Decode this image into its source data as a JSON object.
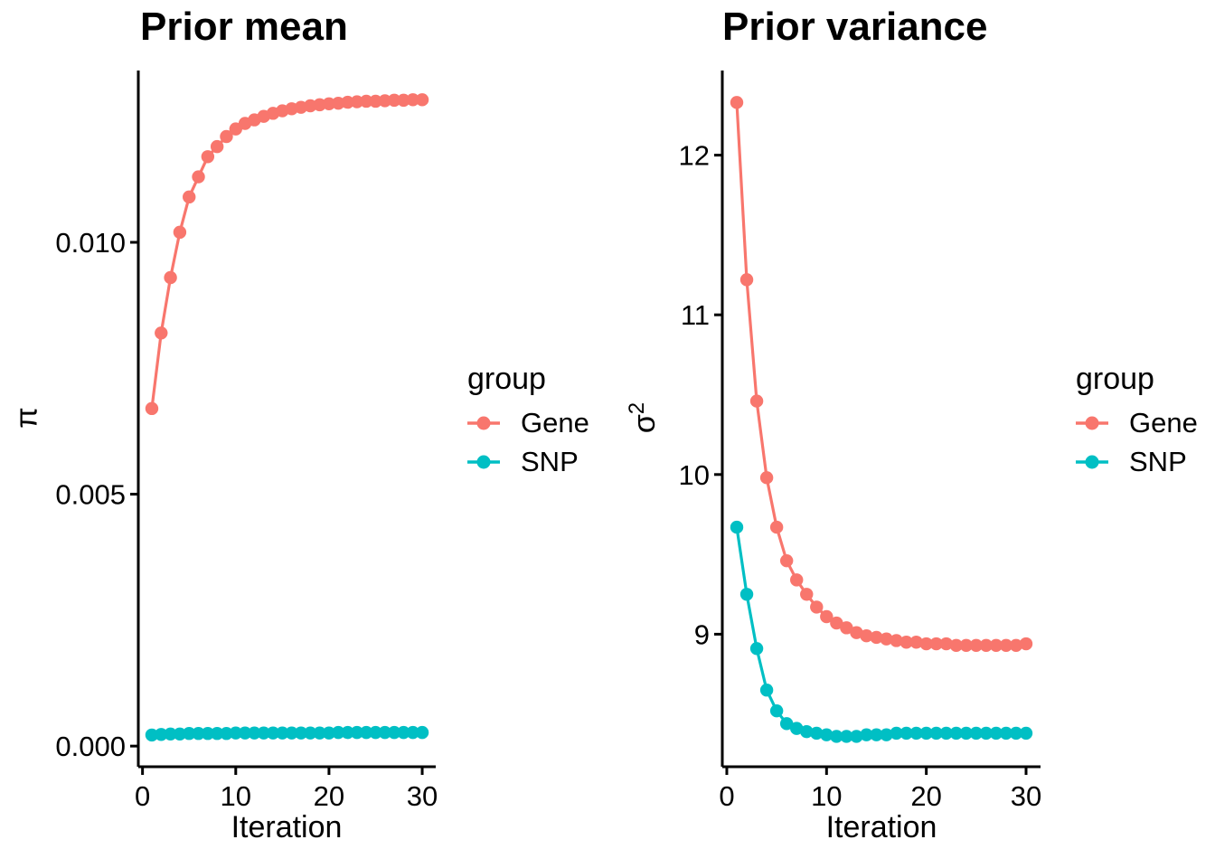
{
  "figure": {
    "background": "#FFFFFF",
    "axis_color": "#000000",
    "text_color": "#000000"
  },
  "chart_data": [
    {
      "type": "line",
      "title": "Prior mean",
      "xlabel": "Iteration",
      "ylabel": "π",
      "ylabel_base": "π",
      "ylabel_exponent": "",
      "legend": {
        "title": "group",
        "position": "right"
      },
      "grid": false,
      "xlim": [
        -0.45,
        31.45
      ],
      "ylim": [
        -0.00041,
        0.01341
      ],
      "x_ticks": [
        0,
        10,
        20,
        30
      ],
      "y_ticks": [
        {
          "value": 0.0,
          "label": "0.000"
        },
        {
          "value": 0.005,
          "label": "0.005"
        },
        {
          "value": 0.01,
          "label": "0.010"
        }
      ],
      "x": [
        1,
        2,
        3,
        4,
        5,
        6,
        7,
        8,
        9,
        10,
        11,
        12,
        13,
        14,
        15,
        16,
        17,
        18,
        19,
        20,
        21,
        22,
        23,
        24,
        25,
        26,
        27,
        28,
        29,
        30
      ],
      "series": [
        {
          "name": "Gene",
          "color": "#F8766D",
          "values": [
            0.0067,
            0.0082,
            0.0093,
            0.0102,
            0.0109,
            0.0113,
            0.0117,
            0.0119,
            0.0121,
            0.01225,
            0.01236,
            0.01243,
            0.0125,
            0.01256,
            0.01261,
            0.01265,
            0.01268,
            0.01271,
            0.01273,
            0.01275,
            0.01276,
            0.01278,
            0.01279,
            0.0128,
            0.0128,
            0.01281,
            0.01282,
            0.01282,
            0.01283,
            0.01283
          ]
        },
        {
          "name": "SNP",
          "color": "#00BFC4",
          "values": [
            0.00022,
            0.00023,
            0.00024,
            0.00024,
            0.00025,
            0.00025,
            0.00025,
            0.00025,
            0.00025,
            0.00026,
            0.00026,
            0.00026,
            0.00026,
            0.00026,
            0.00026,
            0.00026,
            0.00026,
            0.00026,
            0.00026,
            0.00026,
            0.00027,
            0.00027,
            0.00027,
            0.00027,
            0.00027,
            0.00027,
            0.00027,
            0.00027,
            0.00027,
            0.00027
          ]
        }
      ]
    },
    {
      "type": "line",
      "title": "Prior variance",
      "xlabel": "Iteration",
      "ylabel": "σ²",
      "ylabel_base": "σ",
      "ylabel_exponent": "2",
      "legend": {
        "title": "group",
        "position": "right"
      },
      "grid": false,
      "xlim": [
        -0.45,
        31.45
      ],
      "ylim": [
        8.17,
        12.53
      ],
      "x_ticks": [
        0,
        10,
        20,
        30
      ],
      "y_ticks": [
        {
          "value": 9,
          "label": "9"
        },
        {
          "value": 10,
          "label": "10"
        },
        {
          "value": 11,
          "label": "11"
        },
        {
          "value": 12,
          "label": "12"
        }
      ],
      "x": [
        1,
        2,
        3,
        4,
        5,
        6,
        7,
        8,
        9,
        10,
        11,
        12,
        13,
        14,
        15,
        16,
        17,
        18,
        19,
        20,
        21,
        22,
        23,
        24,
        25,
        26,
        27,
        28,
        29,
        30
      ],
      "series": [
        {
          "name": "Gene",
          "color": "#F8766D",
          "values": [
            12.33,
            11.22,
            10.46,
            9.98,
            9.67,
            9.46,
            9.34,
            9.25,
            9.17,
            9.11,
            9.07,
            9.04,
            9.01,
            8.99,
            8.98,
            8.97,
            8.96,
            8.95,
            8.95,
            8.94,
            8.94,
            8.94,
            8.93,
            8.93,
            8.93,
            8.93,
            8.93,
            8.93,
            8.93,
            8.94
          ]
        },
        {
          "name": "SNP",
          "color": "#00BFC4",
          "values": [
            9.67,
            9.25,
            8.91,
            8.65,
            8.52,
            8.44,
            8.41,
            8.39,
            8.38,
            8.37,
            8.36,
            8.36,
            8.36,
            8.37,
            8.37,
            8.37,
            8.38,
            8.38,
            8.38,
            8.38,
            8.38,
            8.38,
            8.38,
            8.38,
            8.38,
            8.38,
            8.38,
            8.38,
            8.38,
            8.38
          ]
        }
      ]
    }
  ]
}
